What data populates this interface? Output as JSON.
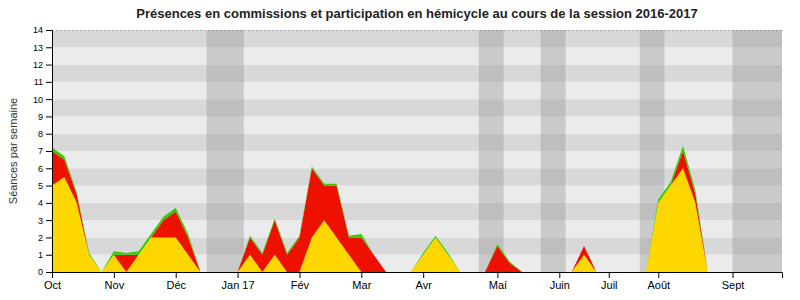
{
  "chart_data": {
    "type": "area",
    "stacked": true,
    "title": "Présences en commissions et participation en hémicycle au cours de la session 2016-2017",
    "y_label": "Séances par semaine",
    "x": [
      0,
      1,
      2,
      3,
      4,
      5,
      6,
      7,
      8,
      9,
      10,
      11,
      12,
      13,
      14,
      15,
      16,
      17,
      18,
      19,
      20,
      21,
      22,
      23,
      24,
      25,
      26,
      27,
      28,
      29,
      30,
      31,
      32,
      33,
      34,
      35,
      36,
      37,
      38,
      39,
      40,
      41,
      42,
      43,
      44,
      45,
      46,
      47,
      48,
      49,
      50,
      51,
      52,
      53,
      54,
      55,
      56,
      57,
      58,
      59
    ],
    "xlim": [
      0,
      59
    ],
    "xticks": [
      {
        "value": 0,
        "label": "Oct"
      },
      {
        "value": 5,
        "label": "Nov"
      },
      {
        "value": 10,
        "label": "Déc"
      },
      {
        "value": 15,
        "label": "Jan 17"
      },
      {
        "value": 20,
        "label": "Fév"
      },
      {
        "value": 25,
        "label": "Mar"
      },
      {
        "value": 30,
        "label": "Avr"
      },
      {
        "value": 36,
        "label": "Maí"
      },
      {
        "value": 41,
        "label": "Juin"
      },
      {
        "value": 45,
        "label": "Juil"
      },
      {
        "value": 49,
        "label": "Août"
      },
      {
        "value": 55,
        "label": "Sept"
      }
    ],
    "ylim": [
      0,
      14
    ],
    "yticks": [
      0,
      1,
      2,
      3,
      4,
      5,
      6,
      7,
      8,
      9,
      10,
      11,
      12,
      13,
      14
    ],
    "bands": [
      [
        12.5,
        15.5
      ],
      [
        34.5,
        36.5
      ],
      [
        39.5,
        41.5
      ],
      [
        47.5,
        49.5
      ],
      [
        55,
        59
      ]
    ],
    "series": [
      {
        "color": "#FFD700",
        "values": [
          5,
          5.5,
          4,
          1,
          0,
          1,
          0,
          1,
          2,
          2,
          2,
          1,
          0,
          0,
          0,
          0,
          1,
          0,
          1,
          0,
          0,
          2,
          3,
          2,
          1,
          0,
          0,
          0,
          0,
          0,
          1,
          2,
          1,
          0,
          0,
          0,
          0,
          0,
          0,
          0,
          0,
          0,
          0,
          1,
          0,
          0,
          0,
          0,
          0,
          4,
          5,
          6,
          4,
          0,
          0,
          0,
          0,
          0,
          0,
          0
        ]
      },
      {
        "color": "#EE1100",
        "values": [
          2,
          1,
          0.5,
          0,
          0,
          0,
          1,
          0,
          0,
          1,
          1.5,
          1,
          0,
          0,
          0,
          0,
          1,
          1,
          2,
          1,
          2,
          4,
          2,
          3,
          1,
          2,
          1,
          0,
          0,
          0,
          0,
          0,
          0,
          0,
          0,
          0,
          1.5,
          0.5,
          0,
          0,
          0,
          0,
          0,
          0.5,
          0,
          0,
          0,
          0,
          0,
          0,
          0,
          1,
          0.5,
          0,
          0,
          0,
          0,
          0,
          0,
          0
        ]
      },
      {
        "color": "#33CC00",
        "values": [
          0.2,
          0.2,
          0.1,
          0.1,
          0,
          0.2,
          0.1,
          0.2,
          0.2,
          0.2,
          0.2,
          0.2,
          0,
          0,
          0,
          0,
          0.1,
          0.1,
          0.1,
          0.1,
          0.1,
          0.1,
          0.1,
          0.1,
          0.1,
          0.2,
          0,
          0,
          0,
          0,
          0.1,
          0.1,
          0.1,
          0,
          0,
          0,
          0.1,
          0.1,
          0,
          0,
          0,
          0,
          0,
          0,
          0,
          0,
          0,
          0,
          0,
          0.2,
          0.2,
          0.3,
          0.2,
          0,
          0,
          0,
          0,
          0,
          0,
          0
        ]
      }
    ]
  }
}
